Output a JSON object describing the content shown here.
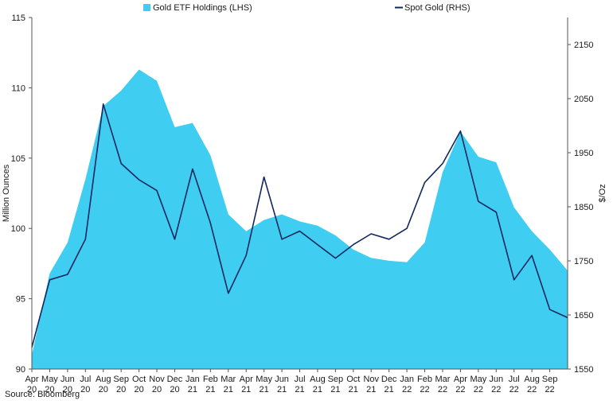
{
  "chart_data": {
    "type": "area",
    "source": "Source: Bloomberg",
    "legend": {
      "position": "top-center"
    },
    "x_ticks": [
      [
        "Apr",
        "20"
      ],
      [
        "May",
        "20"
      ],
      [
        "Jun",
        "20"
      ],
      [
        "Jul",
        "20"
      ],
      [
        "Aug",
        "20"
      ],
      [
        "Sep",
        "20"
      ],
      [
        "Oct",
        "20"
      ],
      [
        "Nov",
        "20"
      ],
      [
        "Dec",
        "20"
      ],
      [
        "Jan",
        "21"
      ],
      [
        "Feb",
        "21"
      ],
      [
        "Mar",
        "21"
      ],
      [
        "Apr",
        "21"
      ],
      [
        "May",
        "21"
      ],
      [
        "Jun",
        "21"
      ],
      [
        "Jul",
        "21"
      ],
      [
        "Aug",
        "21"
      ],
      [
        "Sep",
        "21"
      ],
      [
        "Oct",
        "21"
      ],
      [
        "Nov",
        "21"
      ],
      [
        "Dec",
        "21"
      ],
      [
        "Jan",
        "22"
      ],
      [
        "Feb",
        "22"
      ],
      [
        "Mar",
        "22"
      ],
      [
        "Apr",
        "22"
      ],
      [
        "May",
        "22"
      ],
      [
        "Jun",
        "22"
      ],
      [
        "Jul",
        "22"
      ],
      [
        "Aug",
        "22"
      ],
      [
        "Sep",
        "22"
      ]
    ],
    "x": [
      "2020-04",
      "2020-05",
      "2020-06",
      "2020-07",
      "2020-08",
      "2020-09",
      "2020-10",
      "2020-11",
      "2020-12",
      "2021-01",
      "2021-02",
      "2021-03",
      "2021-04",
      "2021-05",
      "2021-06",
      "2021-07",
      "2021-08",
      "2021-09",
      "2021-10",
      "2021-11",
      "2021-12",
      "2022-01",
      "2022-02",
      "2022-03",
      "2022-04",
      "2022-05",
      "2022-06",
      "2022-07",
      "2022-08",
      "2022-09",
      "2022-10"
    ],
    "y_left": {
      "label": "Million Ounces",
      "range": [
        90,
        115
      ],
      "ticks": [
        "90",
        "95",
        "100",
        "105",
        "110",
        "115"
      ]
    },
    "y_right": {
      "label": "$/Oz",
      "range": [
        1550,
        2200
      ],
      "ticks": [
        "1550",
        "1650",
        "1750",
        "1850",
        "1950",
        "2050",
        "2150"
      ]
    },
    "series": [
      {
        "name": "Gold ETF Holdings (LHS)",
        "type": "area",
        "axis": "left",
        "color": "#3fcdf2",
        "values": [
          91.0,
          96.8,
          99.0,
          103.5,
          108.7,
          109.8,
          111.3,
          110.5,
          107.2,
          107.5,
          105.2,
          101.0,
          99.8,
          100.6,
          101.0,
          100.5,
          100.2,
          99.5,
          98.5,
          97.9,
          97.7,
          97.6,
          99.0,
          104.0,
          106.9,
          105.1,
          104.7,
          101.5,
          99.8,
          98.5,
          97.0
        ]
      },
      {
        "name": "Spot Gold (RHS)",
        "type": "line",
        "axis": "right",
        "color": "#12275e",
        "values": [
          1590,
          1715,
          1725,
          1790,
          2040,
          1930,
          1900,
          1880,
          1790,
          1920,
          1820,
          1690,
          1760,
          1905,
          1790,
          1805,
          1780,
          1755,
          1780,
          1800,
          1790,
          1810,
          1895,
          1930,
          1990,
          1860,
          1840,
          1715,
          1760,
          1660,
          1645
        ]
      }
    ]
  }
}
